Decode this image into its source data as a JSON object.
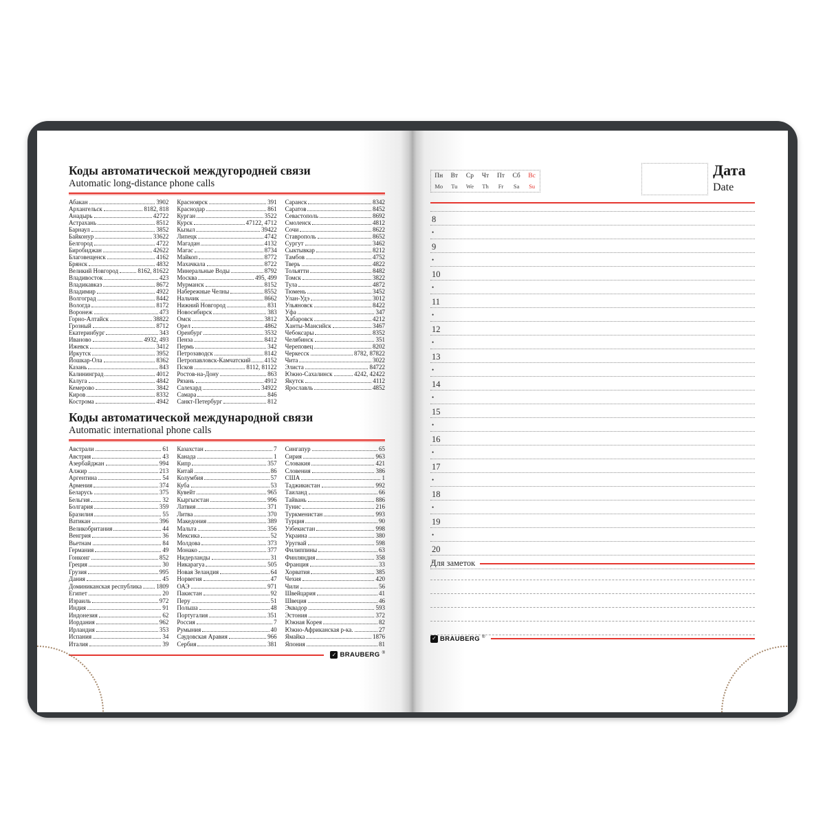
{
  "brand": {
    "name": "BRAUBERG",
    "reg": "®",
    "check_icon": "✓"
  },
  "colors": {
    "accent_red": "#e5362f",
    "cover": "#36393c",
    "stitch": "#a5876a"
  },
  "left_page": {
    "sections": [
      {
        "title_ru": "Коды автоматической междугородней связи",
        "title_en": "Automatic long-distance phone calls",
        "columns": [
          [
            [
              "Абакан",
              "3902"
            ],
            [
              "Архангельск",
              "8182, 818"
            ],
            [
              "Анадырь",
              "42722"
            ],
            [
              "Астрахань",
              "8512"
            ],
            [
              "Барнаул",
              "3852"
            ],
            [
              "Байконур",
              "33622"
            ],
            [
              "Белгород",
              "4722"
            ],
            [
              "Биробиджан",
              "42622"
            ],
            [
              "Благовещенск",
              "4162"
            ],
            [
              "Брянск",
              "4832"
            ],
            [
              "Великий Новгород",
              "8162, 81622"
            ],
            [
              "Владивосток",
              "423"
            ],
            [
              "Владикавказ",
              "8672"
            ],
            [
              "Владимир",
              "4922"
            ],
            [
              "Волгоград",
              "8442"
            ],
            [
              "Вологда",
              "8172"
            ],
            [
              "Воронеж",
              "473"
            ],
            [
              "Горно-Алтайск",
              "38822"
            ],
            [
              "Грозный",
              "8712"
            ],
            [
              "Екатеринбург",
              "343"
            ],
            [
              "Иваново",
              "4932, 493"
            ],
            [
              "Ижевск",
              "3412"
            ],
            [
              "Иркутск",
              "3952"
            ],
            [
              "Йошкар-Ола",
              "8362"
            ],
            [
              "Казань",
              "843"
            ],
            [
              "Калининград",
              "4012"
            ],
            [
              "Калуга",
              "4842"
            ],
            [
              "Кемерово",
              "3842"
            ],
            [
              "Киров",
              "8332"
            ],
            [
              "Кострома",
              "4942"
            ]
          ],
          [
            [
              "Красноярск",
              "391"
            ],
            [
              "Краснодар",
              "861"
            ],
            [
              "Курган",
              "3522"
            ],
            [
              "Курск",
              "47122, 4712"
            ],
            [
              "Кызыл",
              "39422"
            ],
            [
              "Липецк",
              "4742"
            ],
            [
              "Магадан",
              "4132"
            ],
            [
              "Магас",
              "8734"
            ],
            [
              "Майкоп",
              "8772"
            ],
            [
              "Махачкала",
              "8722"
            ],
            [
              "Минеральные Воды",
              "8792"
            ],
            [
              "Москва",
              "495, 499"
            ],
            [
              "Мурманск",
              "8152"
            ],
            [
              "Набережные Челны",
              "8552"
            ],
            [
              "Нальчик",
              "8662"
            ],
            [
              "Нижний Новгород",
              "831"
            ],
            [
              "Новосибирск",
              "383"
            ],
            [
              "Омск",
              "3812"
            ],
            [
              "Орел",
              "4862"
            ],
            [
              "Оренбург",
              "3532"
            ],
            [
              "Пенза",
              "8412"
            ],
            [
              "Пермь",
              "342"
            ],
            [
              "Петрозаводск",
              "8142"
            ],
            [
              "Петропавловск-Камчатский",
              "4152"
            ],
            [
              "Псков",
              "8112, 81122"
            ],
            [
              "Ростов-на-Дону",
              "863"
            ],
            [
              "Рязань",
              "4912"
            ],
            [
              "Салехард",
              "34922"
            ],
            [
              "Самара",
              "846"
            ],
            [
              "Санкт-Петербург",
              "812"
            ]
          ],
          [
            [
              "Саранск",
              "8342"
            ],
            [
              "Саратов",
              "8452"
            ],
            [
              "Севастополь",
              "8692"
            ],
            [
              "Смоленск",
              "4812"
            ],
            [
              "Сочи",
              "8622"
            ],
            [
              "Ставрополь",
              "8652"
            ],
            [
              "Сургут",
              "3462"
            ],
            [
              "Сыктывкар",
              "8212"
            ],
            [
              "Тамбов",
              "4752"
            ],
            [
              "Тверь",
              "4822"
            ],
            [
              "Тольятти",
              "8482"
            ],
            [
              "Томск",
              "3822"
            ],
            [
              "Тула",
              "4872"
            ],
            [
              "Тюмень",
              "3452"
            ],
            [
              "Улан-Удэ",
              "3012"
            ],
            [
              "Ульяновск",
              "8422"
            ],
            [
              "Уфа",
              "347"
            ],
            [
              "Хабаровск",
              "4212"
            ],
            [
              "Ханты-Мансийск",
              "3467"
            ],
            [
              "Чебоксары",
              "8352"
            ],
            [
              "Челябинск",
              "351"
            ],
            [
              "Череповец",
              "8202"
            ],
            [
              "Черкесск",
              "8782, 87822"
            ],
            [
              "Чита",
              "3022"
            ],
            [
              "Элиста",
              "84722"
            ],
            [
              "Южно-Сахалинск",
              "4242, 42422"
            ],
            [
              "Якутск",
              "4112"
            ],
            [
              "Ярославль",
              "4852"
            ]
          ]
        ]
      },
      {
        "title_ru": "Коды автоматической международной связи",
        "title_en": "Automatic international phone calls",
        "columns": [
          [
            [
              "Австрали",
              "61"
            ],
            [
              "Австрия",
              "43"
            ],
            [
              "Азербайджан",
              "994"
            ],
            [
              "Алжир",
              "213"
            ],
            [
              "Аргентина",
              "54"
            ],
            [
              "Армения",
              "374"
            ],
            [
              "Беларусь",
              "375"
            ],
            [
              "Бельгия",
              "32"
            ],
            [
              "Болгария",
              "359"
            ],
            [
              "Бразилия",
              "55"
            ],
            [
              "Ватикан",
              "396"
            ],
            [
              "Великобритания",
              "44"
            ],
            [
              "Венгрия",
              "36"
            ],
            [
              "Вьетнам",
              "84"
            ],
            [
              "Германия",
              "49"
            ],
            [
              "Гонконг",
              "852"
            ],
            [
              "Греция",
              "30"
            ],
            [
              "Грузия",
              "995"
            ],
            [
              "Дания",
              "45"
            ],
            [
              "Доминиканская республика",
              "1809"
            ],
            [
              "Египет",
              "20"
            ],
            [
              "Израиль",
              "972"
            ],
            [
              "Индия",
              "91"
            ],
            [
              "Индонезия",
              "62"
            ],
            [
              "Иордания",
              "962"
            ],
            [
              "Ирландия",
              "353"
            ],
            [
              "Испания",
              "34"
            ],
            [
              "Италия",
              "39"
            ]
          ],
          [
            [
              "Казахстан",
              "7"
            ],
            [
              "Канада",
              "1"
            ],
            [
              "Кипр",
              "357"
            ],
            [
              "Китай",
              "86"
            ],
            [
              "Колумбия",
              "57"
            ],
            [
              "Куба",
              "53"
            ],
            [
              "Кувейт",
              "965"
            ],
            [
              "Кыргызстан",
              "996"
            ],
            [
              "Латвия",
              "371"
            ],
            [
              "Литва",
              "370"
            ],
            [
              "Македония",
              "389"
            ],
            [
              "Мальта",
              "356"
            ],
            [
              "Мексика",
              "52"
            ],
            [
              "Молдова",
              "373"
            ],
            [
              "Монако",
              "377"
            ],
            [
              "Нидерланды",
              "31"
            ],
            [
              "Никарагуа",
              "505"
            ],
            [
              "Новая Зеландия",
              "64"
            ],
            [
              "Норвегия",
              "47"
            ],
            [
              "ОАЭ",
              "971"
            ],
            [
              "Пакистан",
              "92"
            ],
            [
              "Перу",
              "51"
            ],
            [
              "Польша",
              "48"
            ],
            [
              "Португалия",
              "351"
            ],
            [
              "Россия",
              "7"
            ],
            [
              "Румыния",
              "40"
            ],
            [
              "Саудовская Аравия",
              "966"
            ],
            [
              "Сербия",
              "381"
            ]
          ],
          [
            [
              "Сингапур",
              "65"
            ],
            [
              "Сирия",
              "963"
            ],
            [
              "Словакия",
              "421"
            ],
            [
              "Словения",
              "386"
            ],
            [
              "США",
              "1"
            ],
            [
              "Таджикистан",
              "992"
            ],
            [
              "Таиланд",
              "66"
            ],
            [
              "Тайвань",
              "886"
            ],
            [
              "Тунис",
              "216"
            ],
            [
              "Туркменистан",
              "993"
            ],
            [
              "Турция",
              "90"
            ],
            [
              "Узбекистан",
              "998"
            ],
            [
              "Украина",
              "380"
            ],
            [
              "Уругвай",
              "598"
            ],
            [
              "Филиппины",
              "63"
            ],
            [
              "Финляндия",
              "358"
            ],
            [
              "Франция",
              "33"
            ],
            [
              "Хорватия",
              "385"
            ],
            [
              "Чехия",
              "420"
            ],
            [
              "Чили",
              "56"
            ],
            [
              "Швейцария",
              "41"
            ],
            [
              "Швеция",
              "46"
            ],
            [
              "Эквадор",
              "593"
            ],
            [
              "Эстония",
              "372"
            ],
            [
              "Южная Корея",
              "82"
            ],
            [
              "Южно-Африканская р-ка.",
              "27"
            ],
            [
              "Ямайка",
              "1876"
            ],
            [
              "Япония",
              "81"
            ]
          ]
        ]
      }
    ]
  },
  "right_page": {
    "week": {
      "ru": [
        "Пн",
        "Вт",
        "Ср",
        "Чт",
        "Пт",
        "Сб",
        "Вс"
      ],
      "en": [
        "Mo",
        "Tu",
        "We",
        "Th",
        "Fr",
        "Sa",
        "Su"
      ]
    },
    "date_label": {
      "ru": "Дата",
      "en": "Date"
    },
    "hours": [
      "8",
      "9",
      "10",
      "11",
      "12",
      "13",
      "14",
      "15",
      "16",
      "17",
      "18",
      "19",
      "20"
    ],
    "bullet": "•",
    "notes_label": "Для заметок",
    "notes_lines_count": 5
  }
}
